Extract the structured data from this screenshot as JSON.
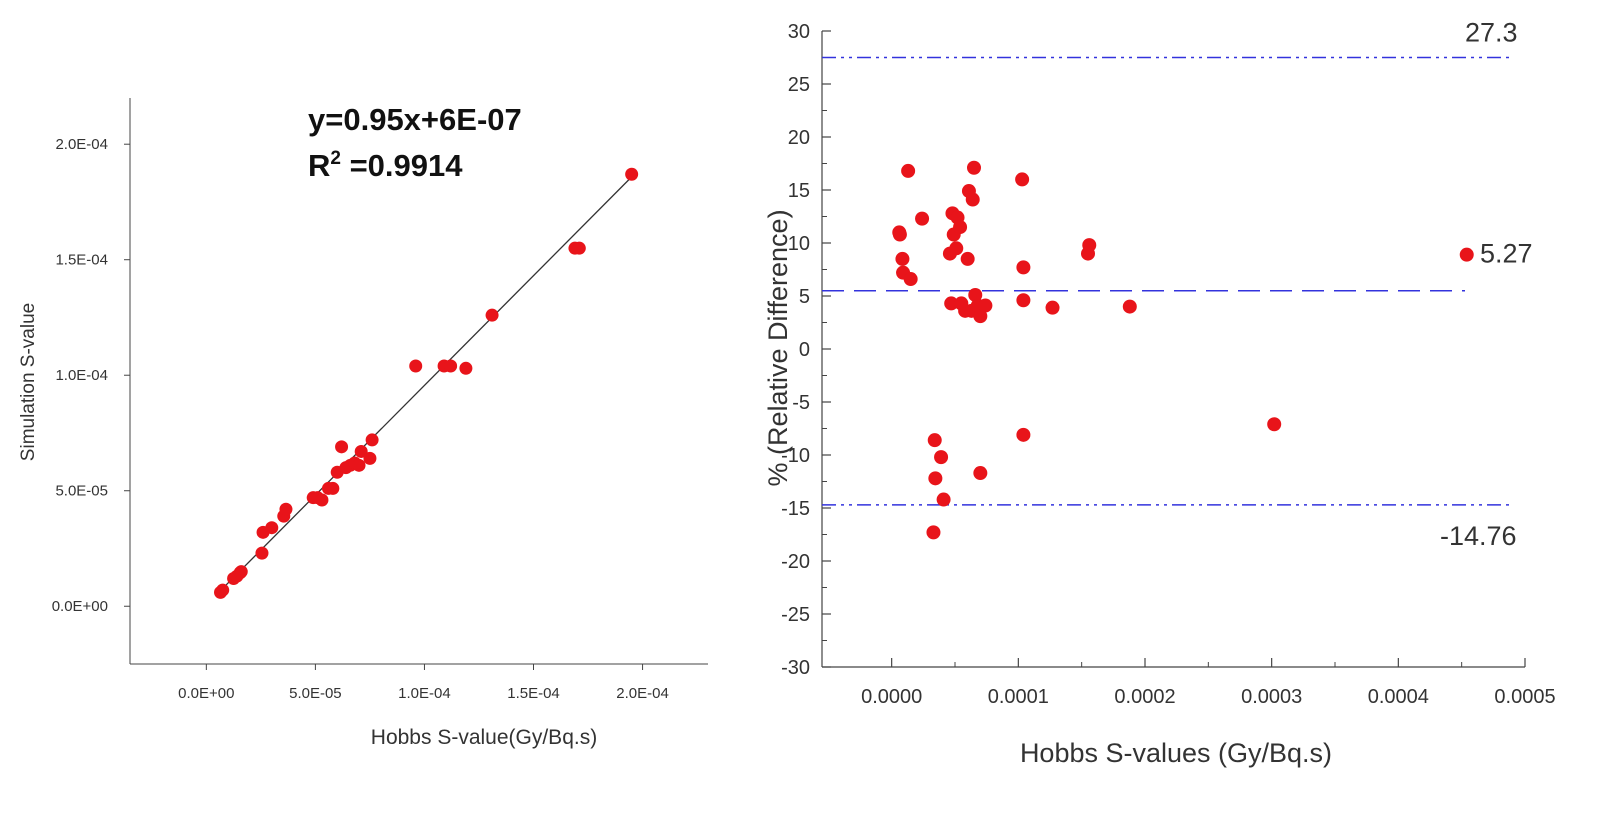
{
  "chart_data": [
    {
      "type": "scatter",
      "title": "",
      "xlabel": "Hobbs S-value(Gy/Bq.s)",
      "ylabel": "Simulation S-value",
      "xlim": [
        -3.5e-05,
        0.00023
      ],
      "ylim": [
        -2.5e-05,
        0.00022
      ],
      "xticks": [
        0,
        5e-05,
        0.0001,
        0.00015,
        0.0002
      ],
      "xtick_labels": [
        "0.0E+00",
        "5.0E-05",
        "1.0E-04",
        "1.5E-04",
        "2.0E-04"
      ],
      "yticks": [
        0,
        5e-05,
        0.0001,
        0.00015,
        0.0002
      ],
      "ytick_labels": [
        "0.0E+00",
        "5.0E-05",
        "1.0E-04",
        "1.5E-04",
        "2.0E-04"
      ],
      "grid": false,
      "marker_color": "#e8141a",
      "line_color": "#333333",
      "annotation": {
        "equation": "y=0.95x+6E-07",
        "r2_prefix": "R",
        "r2_sup": "2",
        "r2_value": " =0.9914"
      },
      "fit_line": {
        "slope": 0.95,
        "intercept": 6e-07,
        "x_range": [
          6e-06,
          0.000195
        ]
      },
      "points": [
        {
          "x": 6.5e-06,
          "y": 6e-06
        },
        {
          "x": 7.5e-06,
          "y": 7e-06
        },
        {
          "x": 1.25e-05,
          "y": 1.2e-05
        },
        {
          "x": 1.4e-05,
          "y": 1.3e-05
        },
        {
          "x": 1.55e-05,
          "y": 1.45e-05
        },
        {
          "x": 1.6e-05,
          "y": 1.5e-05
        },
        {
          "x": 2.55e-05,
          "y": 2.3e-05
        },
        {
          "x": 2.6e-05,
          "y": 3.2e-05
        },
        {
          "x": 3e-05,
          "y": 3.4e-05
        },
        {
          "x": 3.55e-05,
          "y": 3.9e-05
        },
        {
          "x": 3.65e-05,
          "y": 4.2e-05
        },
        {
          "x": 4.9e-05,
          "y": 4.7e-05
        },
        {
          "x": 5.1e-05,
          "y": 4.7e-05
        },
        {
          "x": 5.3e-05,
          "y": 4.6e-05
        },
        {
          "x": 5.6e-05,
          "y": 5.1e-05
        },
        {
          "x": 5.8e-05,
          "y": 5.1e-05
        },
        {
          "x": 6e-05,
          "y": 5.8e-05
        },
        {
          "x": 6.2e-05,
          "y": 6.9e-05
        },
        {
          "x": 6.4e-05,
          "y": 6e-05
        },
        {
          "x": 6.6e-05,
          "y": 6.1e-05
        },
        {
          "x": 6.8e-05,
          "y": 6.2e-05
        },
        {
          "x": 7e-05,
          "y": 6.1e-05
        },
        {
          "x": 7.1e-05,
          "y": 6.7e-05
        },
        {
          "x": 7.5e-05,
          "y": 6.4e-05
        },
        {
          "x": 7.6e-05,
          "y": 7.2e-05
        },
        {
          "x": 9.6e-05,
          "y": 0.000104
        },
        {
          "x": 0.000109,
          "y": 0.000104
        },
        {
          "x": 0.000112,
          "y": 0.000104
        },
        {
          "x": 0.000119,
          "y": 0.000103
        },
        {
          "x": 0.000131,
          "y": 0.000126
        },
        {
          "x": 0.000169,
          "y": 0.000155
        },
        {
          "x": 0.000171,
          "y": 0.000155
        },
        {
          "x": 0.000195,
          "y": 0.000187
        }
      ]
    },
    {
      "type": "scatter",
      "title": "",
      "xlabel": "Hobbs S-values (Gy/Bq.s)",
      "ylabel": "% (Relative Difference)",
      "xlim": [
        -5.5e-05,
        0.0005
      ],
      "ylim": [
        -30,
        30
      ],
      "xticks": [
        0,
        0.0001,
        0.0002,
        0.0003,
        0.0004,
        0.0005
      ],
      "xtick_labels": [
        "0.0000",
        "0.0001",
        "0.0002",
        "0.0003",
        "0.0004",
        "0.0005"
      ],
      "yticks": [
        30,
        25,
        20,
        15,
        10,
        5,
        0,
        -5,
        -10,
        -15,
        -20,
        -25,
        -30
      ],
      "ytick_labels": [
        "30",
        "25",
        "20",
        "15",
        "10",
        "5",
        "0",
        "-5",
        "-10",
        "-15",
        "-20",
        "-25",
        "-30"
      ],
      "grid": false,
      "marker_color": "#e8141a",
      "reference_lines": [
        {
          "y": 27.5,
          "style": "dash-dot-dot",
          "color": "#3333dd",
          "label": "27.3"
        },
        {
          "y": 5.5,
          "style": "dashed",
          "color": "#3333dd",
          "label": "5.27"
        },
        {
          "y": -14.7,
          "style": "dash-dot-dot",
          "color": "#3333dd",
          "label": "-14.76"
        }
      ],
      "points": [
        {
          "x": 6e-06,
          "y": 11.0
        },
        {
          "x": 6.5e-06,
          "y": 10.8
        },
        {
          "x": 8.5e-06,
          "y": 8.5
        },
        {
          "x": 9e-06,
          "y": 7.2
        },
        {
          "x": 1.3e-05,
          "y": 16.8
        },
        {
          "x": 1.5e-05,
          "y": 6.6
        },
        {
          "x": 2.4e-05,
          "y": 12.3
        },
        {
          "x": 3.3e-05,
          "y": -17.3
        },
        {
          "x": 3.4e-05,
          "y": -8.6
        },
        {
          "x": 3.45e-05,
          "y": -12.2
        },
        {
          "x": 3.9e-05,
          "y": -10.2
        },
        {
          "x": 4.1e-05,
          "y": -14.2
        },
        {
          "x": 4.6e-05,
          "y": 9.0
        },
        {
          "x": 4.7e-05,
          "y": 4.3
        },
        {
          "x": 4.8e-05,
          "y": 12.8
        },
        {
          "x": 4.9e-05,
          "y": 10.8
        },
        {
          "x": 5.1e-05,
          "y": 9.5
        },
        {
          "x": 5.2e-05,
          "y": 12.4
        },
        {
          "x": 5.4e-05,
          "y": 11.5
        },
        {
          "x": 5.5e-05,
          "y": 4.3
        },
        {
          "x": 5.8e-05,
          "y": 3.6
        },
        {
          "x": 6e-05,
          "y": 8.5
        },
        {
          "x": 6.1e-05,
          "y": 14.9
        },
        {
          "x": 6.3e-05,
          "y": 3.6
        },
        {
          "x": 6.4e-05,
          "y": 14.1
        },
        {
          "x": 6.5e-05,
          "y": 17.1
        },
        {
          "x": 6.6e-05,
          "y": 5.1
        },
        {
          "x": 6.8e-05,
          "y": 4.1
        },
        {
          "x": 7e-05,
          "y": -11.7
        },
        {
          "x": 7e-05,
          "y": 3.1
        },
        {
          "x": 7.4e-05,
          "y": 4.1
        },
        {
          "x": 0.000103,
          "y": 16.0
        },
        {
          "x": 0.000104,
          "y": 7.7
        },
        {
          "x": 0.000104,
          "y": 4.6
        },
        {
          "x": 0.000104,
          "y": -8.1
        },
        {
          "x": 0.000127,
          "y": 3.9
        },
        {
          "x": 0.000155,
          "y": 9.0
        },
        {
          "x": 0.000156,
          "y": 9.8
        },
        {
          "x": 0.000188,
          "y": 4.0
        },
        {
          "x": 0.000302,
          "y": -7.1
        },
        {
          "x": 0.000454,
          "y": 8.9
        }
      ]
    }
  ]
}
